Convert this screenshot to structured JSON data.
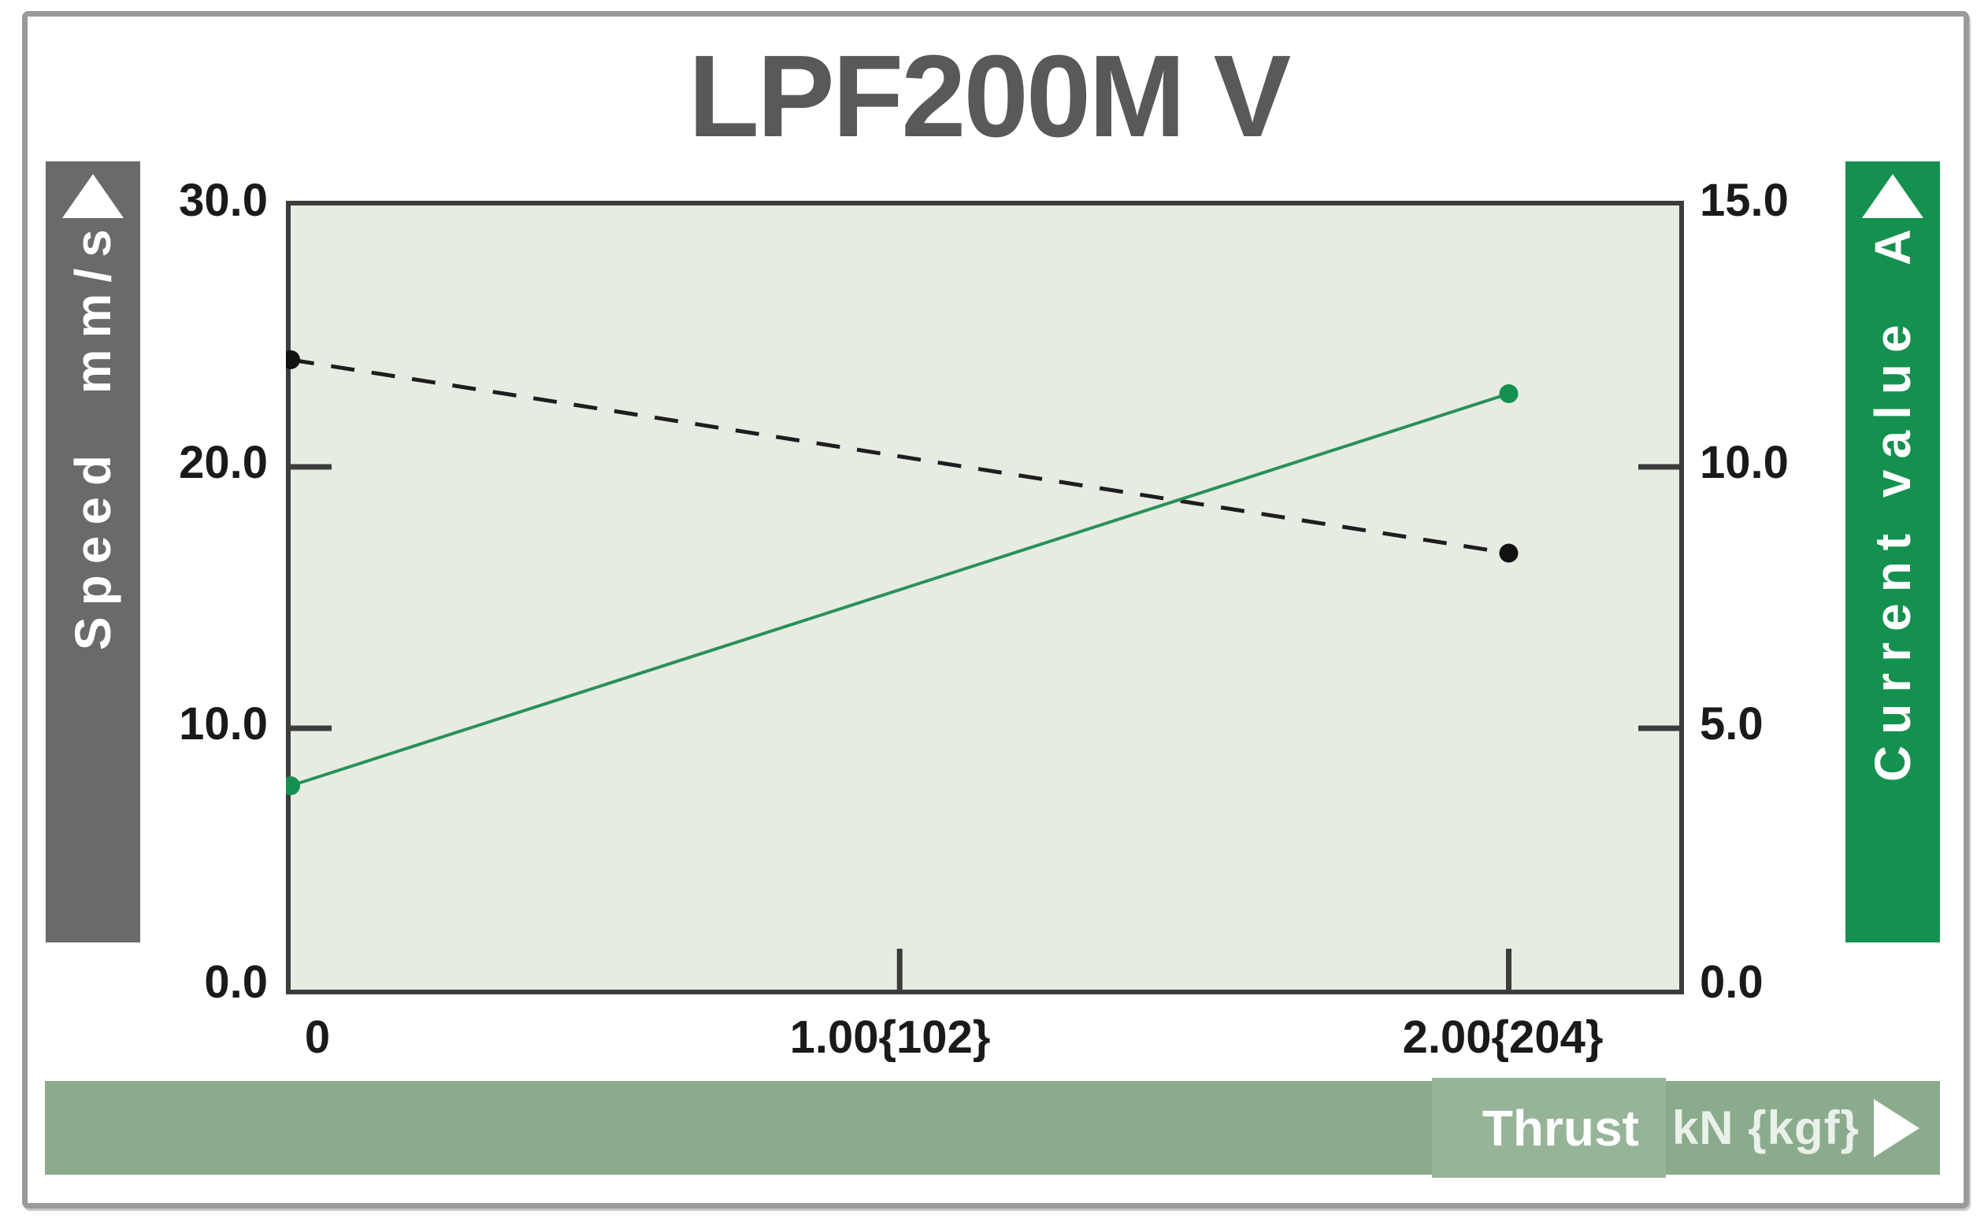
{
  "title": "LPF200M V",
  "left_axis": {
    "label": "Speed",
    "unit": "mm/s",
    "banner_text": "Speed  mm/s",
    "banner_color": "#6a6a6a",
    "ticks": [
      "30.0",
      "20.0",
      "10.0",
      "0.0"
    ]
  },
  "right_axis": {
    "label": "Current value",
    "unit": "A",
    "banner_text": "Current value  A",
    "banner_color": "#14914f",
    "ticks": [
      "15.0",
      "10.0",
      "5.0",
      "0.0"
    ]
  },
  "x_axis": {
    "label": "Thrust",
    "unit": "kN {kgf}",
    "banner_color": "#8bab8d",
    "ticks": [
      "0",
      "1.00{102}",
      "2.00{204}"
    ]
  },
  "chart_data": {
    "type": "line",
    "title": "LPF200M V",
    "xlabel": "Thrust kN {kgf}",
    "xlim": [
      0,
      2.28
    ],
    "x_tick_values": [
      1.0,
      2.0
    ],
    "left_ylim": [
      0,
      30
    ],
    "left_tick_values": [
      10,
      20
    ],
    "right_ylim": [
      0,
      15
    ],
    "right_tick_values": [
      5,
      10
    ],
    "grid": false,
    "plot_bg": "#e7ece3",
    "plot_border_color": "#3c3c3c",
    "series": [
      {
        "name": "Speed",
        "axis": "left",
        "style": "dashed",
        "color": "#1e1e1e",
        "marker_color": "#111111",
        "x": [
          0,
          2.0
        ],
        "values": [
          24.1,
          16.7
        ]
      },
      {
        "name": "Current value",
        "axis": "right",
        "style": "solid",
        "color": "#2a9158",
        "marker_color": "#149150",
        "x": [
          0,
          2.0
        ],
        "values": [
          3.9,
          11.4
        ]
      }
    ]
  }
}
